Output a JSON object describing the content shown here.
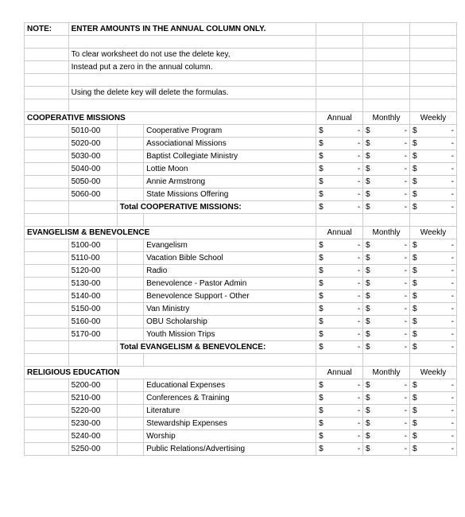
{
  "note_label": "NOTE:",
  "note_title": "ENTER AMOUNTS IN THE ANNUAL COLUMN ONLY.",
  "note_line1": "To clear worksheet do not use the delete key,",
  "note_line2": " Instead put a zero in the annual column.",
  "note_line3": "Using the delete key will delete the formulas.",
  "headers": {
    "annual": "Annual",
    "monthly": "Monthly",
    "weekly": "Weekly"
  },
  "dash": "-",
  "currency": "$",
  "sections": {
    "coop": {
      "title": "COOPERATIVE MISSIONS",
      "total_label": "Total COOPERATIVE MISSIONS:",
      "rows": [
        {
          "code": "5010-00",
          "name": "Cooperative Program"
        },
        {
          "code": "5020-00",
          "name": "Associational Missions"
        },
        {
          "code": "5030-00",
          "name": "Baptist Collegiate Ministry"
        },
        {
          "code": "5040-00",
          "name": "Lottie Moon"
        },
        {
          "code": "5050-00",
          "name": "Annie Armstrong"
        },
        {
          "code": "5060-00",
          "name": "State Missions Offering"
        }
      ]
    },
    "evben": {
      "title": "EVANGELISM & BENEVOLENCE",
      "total_label": "Total EVANGELISM & BENEVOLENCE:",
      "rows": [
        {
          "code": "5100-00",
          "name": "Evangelism"
        },
        {
          "code": "5110-00",
          "name": "Vacation Bible School"
        },
        {
          "code": "5120-00",
          "name": "Radio"
        },
        {
          "code": "5130-00",
          "name": "Benevolence - Pastor Admin"
        },
        {
          "code": "5140-00",
          "name": "Benevolence Support - Other"
        },
        {
          "code": "5150-00",
          "name": "Van Ministry"
        },
        {
          "code": "5160-00",
          "name": "OBU Scholarship"
        },
        {
          "code": "5170-00",
          "name": "Youth Mission Trips"
        }
      ]
    },
    "reled": {
      "title": "RELIGIOUS EDUCATION",
      "rows": [
        {
          "code": "5200-00",
          "name": "Educational Expenses"
        },
        {
          "code": "5210-00",
          "name": "Conferences & Training"
        },
        {
          "code": "5220-00",
          "name": "Literature"
        },
        {
          "code": "5230-00",
          "name": "Stewardship Expenses"
        },
        {
          "code": "5240-00",
          "name": "Worship"
        },
        {
          "code": "5250-00",
          "name": "Public Relations/Advertising"
        }
      ]
    }
  }
}
